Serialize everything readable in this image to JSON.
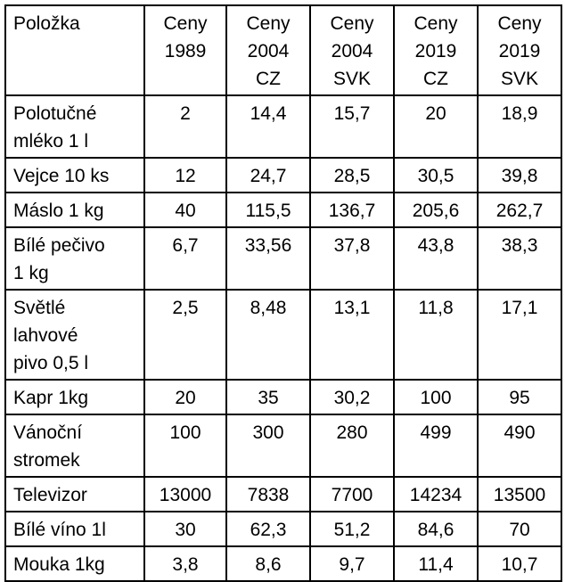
{
  "header": {
    "item": "Položka",
    "columns": [
      [
        "Ceny",
        "1989"
      ],
      [
        "Ceny",
        "2004",
        "CZ"
      ],
      [
        "Ceny",
        "2004",
        "SVK"
      ],
      [
        "Ceny",
        "2019",
        "CZ"
      ],
      [
        "Ceny",
        "2019",
        "SVK"
      ]
    ]
  },
  "rows": [
    {
      "item": [
        "Polotučné",
        "mléko 1 l"
      ],
      "values": [
        "2",
        "14,4",
        "15,7",
        "20",
        "18,9"
      ]
    },
    {
      "item": [
        "Vejce 10 ks"
      ],
      "values": [
        "12",
        "24,7",
        "28,5",
        "30,5",
        "39,8"
      ]
    },
    {
      "item": [
        "Máslo 1 kg"
      ],
      "values": [
        "40",
        "115,5",
        "136,7",
        "205,6",
        "262,7"
      ]
    },
    {
      "item": [
        "Bílé pečivo",
        "1 kg"
      ],
      "values": [
        "6,7",
        "33,56",
        "37,8",
        "43,8",
        "38,3"
      ]
    },
    {
      "item": [
        "Světlé",
        "lahvové",
        "pivo 0,5 l"
      ],
      "values": [
        "2,5",
        "8,48",
        "13,1",
        "11,8",
        "17,1"
      ]
    },
    {
      "item": [
        "Kapr 1kg"
      ],
      "values": [
        "20",
        "35",
        "30,2",
        "100",
        "95"
      ]
    },
    {
      "item": [
        "Vánoční",
        "stromek"
      ],
      "values": [
        "100",
        "300",
        "280",
        "499",
        "490"
      ]
    },
    {
      "item": [
        "Televizor"
      ],
      "values": [
        "13000",
        "7838",
        "7700",
        "14234",
        "13500"
      ]
    },
    {
      "item": [
        "Bílé víno 1l"
      ],
      "values": [
        "30",
        "62,3",
        "51,2",
        "84,6",
        "70"
      ]
    },
    {
      "item": [
        "Mouka 1kg"
      ],
      "values": [
        "3,8",
        "8,6",
        "9,7",
        "11,4",
        "10,7"
      ]
    }
  ]
}
